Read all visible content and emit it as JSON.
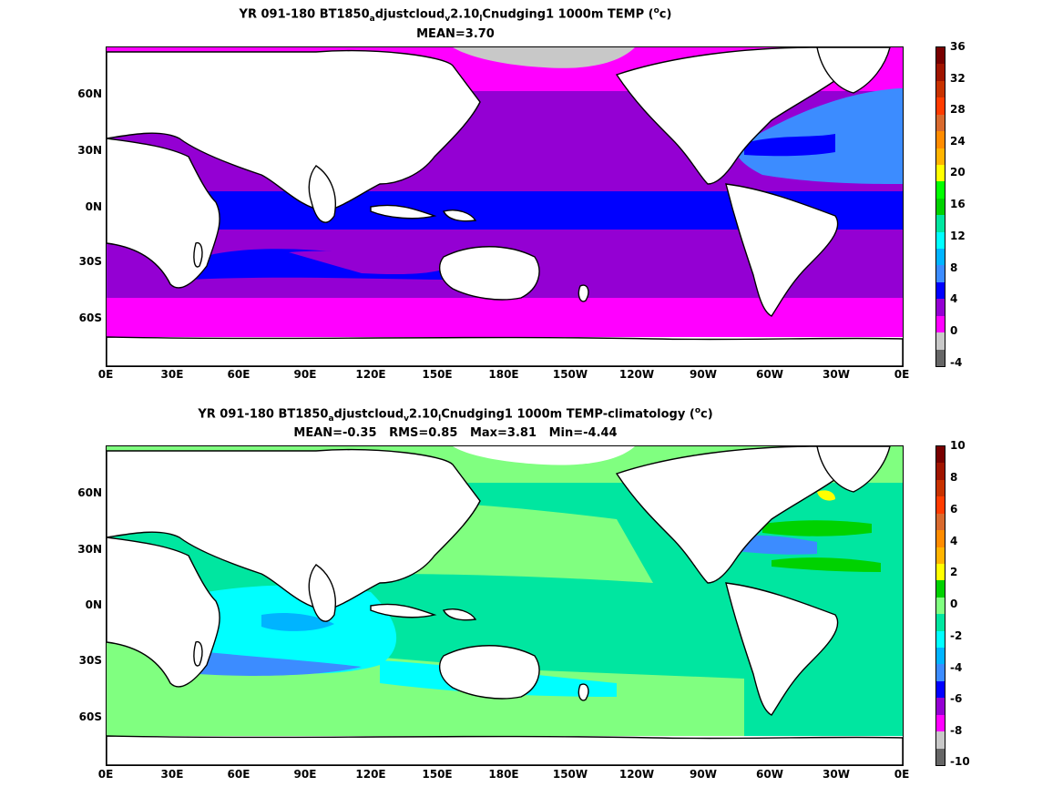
{
  "panels": [
    {
      "id": "top",
      "title_parts": [
        "YR 091-180 BT1850",
        "a",
        "djustcloud",
        "v",
        "2.10",
        "l",
        "Cnudging1 1000m TEMP (",
        "o",
        "c)"
      ],
      "stats": "MEAN=3.70",
      "colorbar": {
        "ticks": [
          "36",
          "32",
          "28",
          "24",
          "20",
          "16",
          "12",
          "8",
          "4",
          "0",
          "-4"
        ],
        "colors": [
          "#666666",
          "#c8c8c8",
          "#ff00ff",
          "#9400d3",
          "#0000ff",
          "#3c8cff",
          "#00b4ff",
          "#00ffff",
          "#00e6a0",
          "#00d200",
          "#00ff00",
          "#ffff00",
          "#ffb400",
          "#ff8c00",
          "#d96a2e",
          "#ff3c00",
          "#c83200",
          "#a01400",
          "#780000"
        ]
      },
      "regions": {
        "high_lat_north": "#ff00ff",
        "north_pacific": "#9400d3",
        "north_atlantic": "#3c8cff",
        "north_atlantic_core": "#0000ff",
        "tropical_band": "#0000ff",
        "southern_band": "#9400d3",
        "southern_ocean": "#ff00ff",
        "arctic_cap": "#c8c8c8"
      }
    },
    {
      "id": "bottom",
      "title_parts": [
        "YR 091-180 BT1850",
        "a",
        "djustcloud",
        "v",
        "2.10",
        "l",
        "Cnudging1 1000m TEMP-climatology (",
        "o",
        "c)"
      ],
      "stats": "MEAN=-0.35   RMS=0.85   Max=3.81   Min=-4.44",
      "colorbar": {
        "ticks": [
          "10",
          "8",
          "6",
          "4",
          "2",
          "0",
          "-2",
          "-4",
          "-6",
          "-8",
          "-10"
        ],
        "colors": [
          "#666666",
          "#c8c8c8",
          "#ff00ff",
          "#9400d3",
          "#0000ff",
          "#3c8cff",
          "#00b4ff",
          "#00ffff",
          "#00e6a0",
          "#80ff80",
          "#00d200",
          "#ffff00",
          "#ffb400",
          "#ff8c00",
          "#d96a2e",
          "#ff3c00",
          "#c83200",
          "#a01400",
          "#780000"
        ]
      },
      "regions": {
        "base": "#00e6a0",
        "light_green": "#80ff80",
        "cyan": "#00ffff",
        "blue_light": "#00b4ff",
        "blue": "#3c8cff",
        "green": "#00d200",
        "yellow": "#ffff00"
      }
    }
  ],
  "axes": {
    "x_ticks": [
      "0E",
      "30E",
      "60E",
      "90E",
      "120E",
      "150E",
      "180E",
      "150W",
      "120W",
      "90W",
      "60W",
      "30W",
      "0E"
    ],
    "y_ticks": [
      "60N",
      "30N",
      "0N",
      "30S",
      "60S"
    ]
  }
}
